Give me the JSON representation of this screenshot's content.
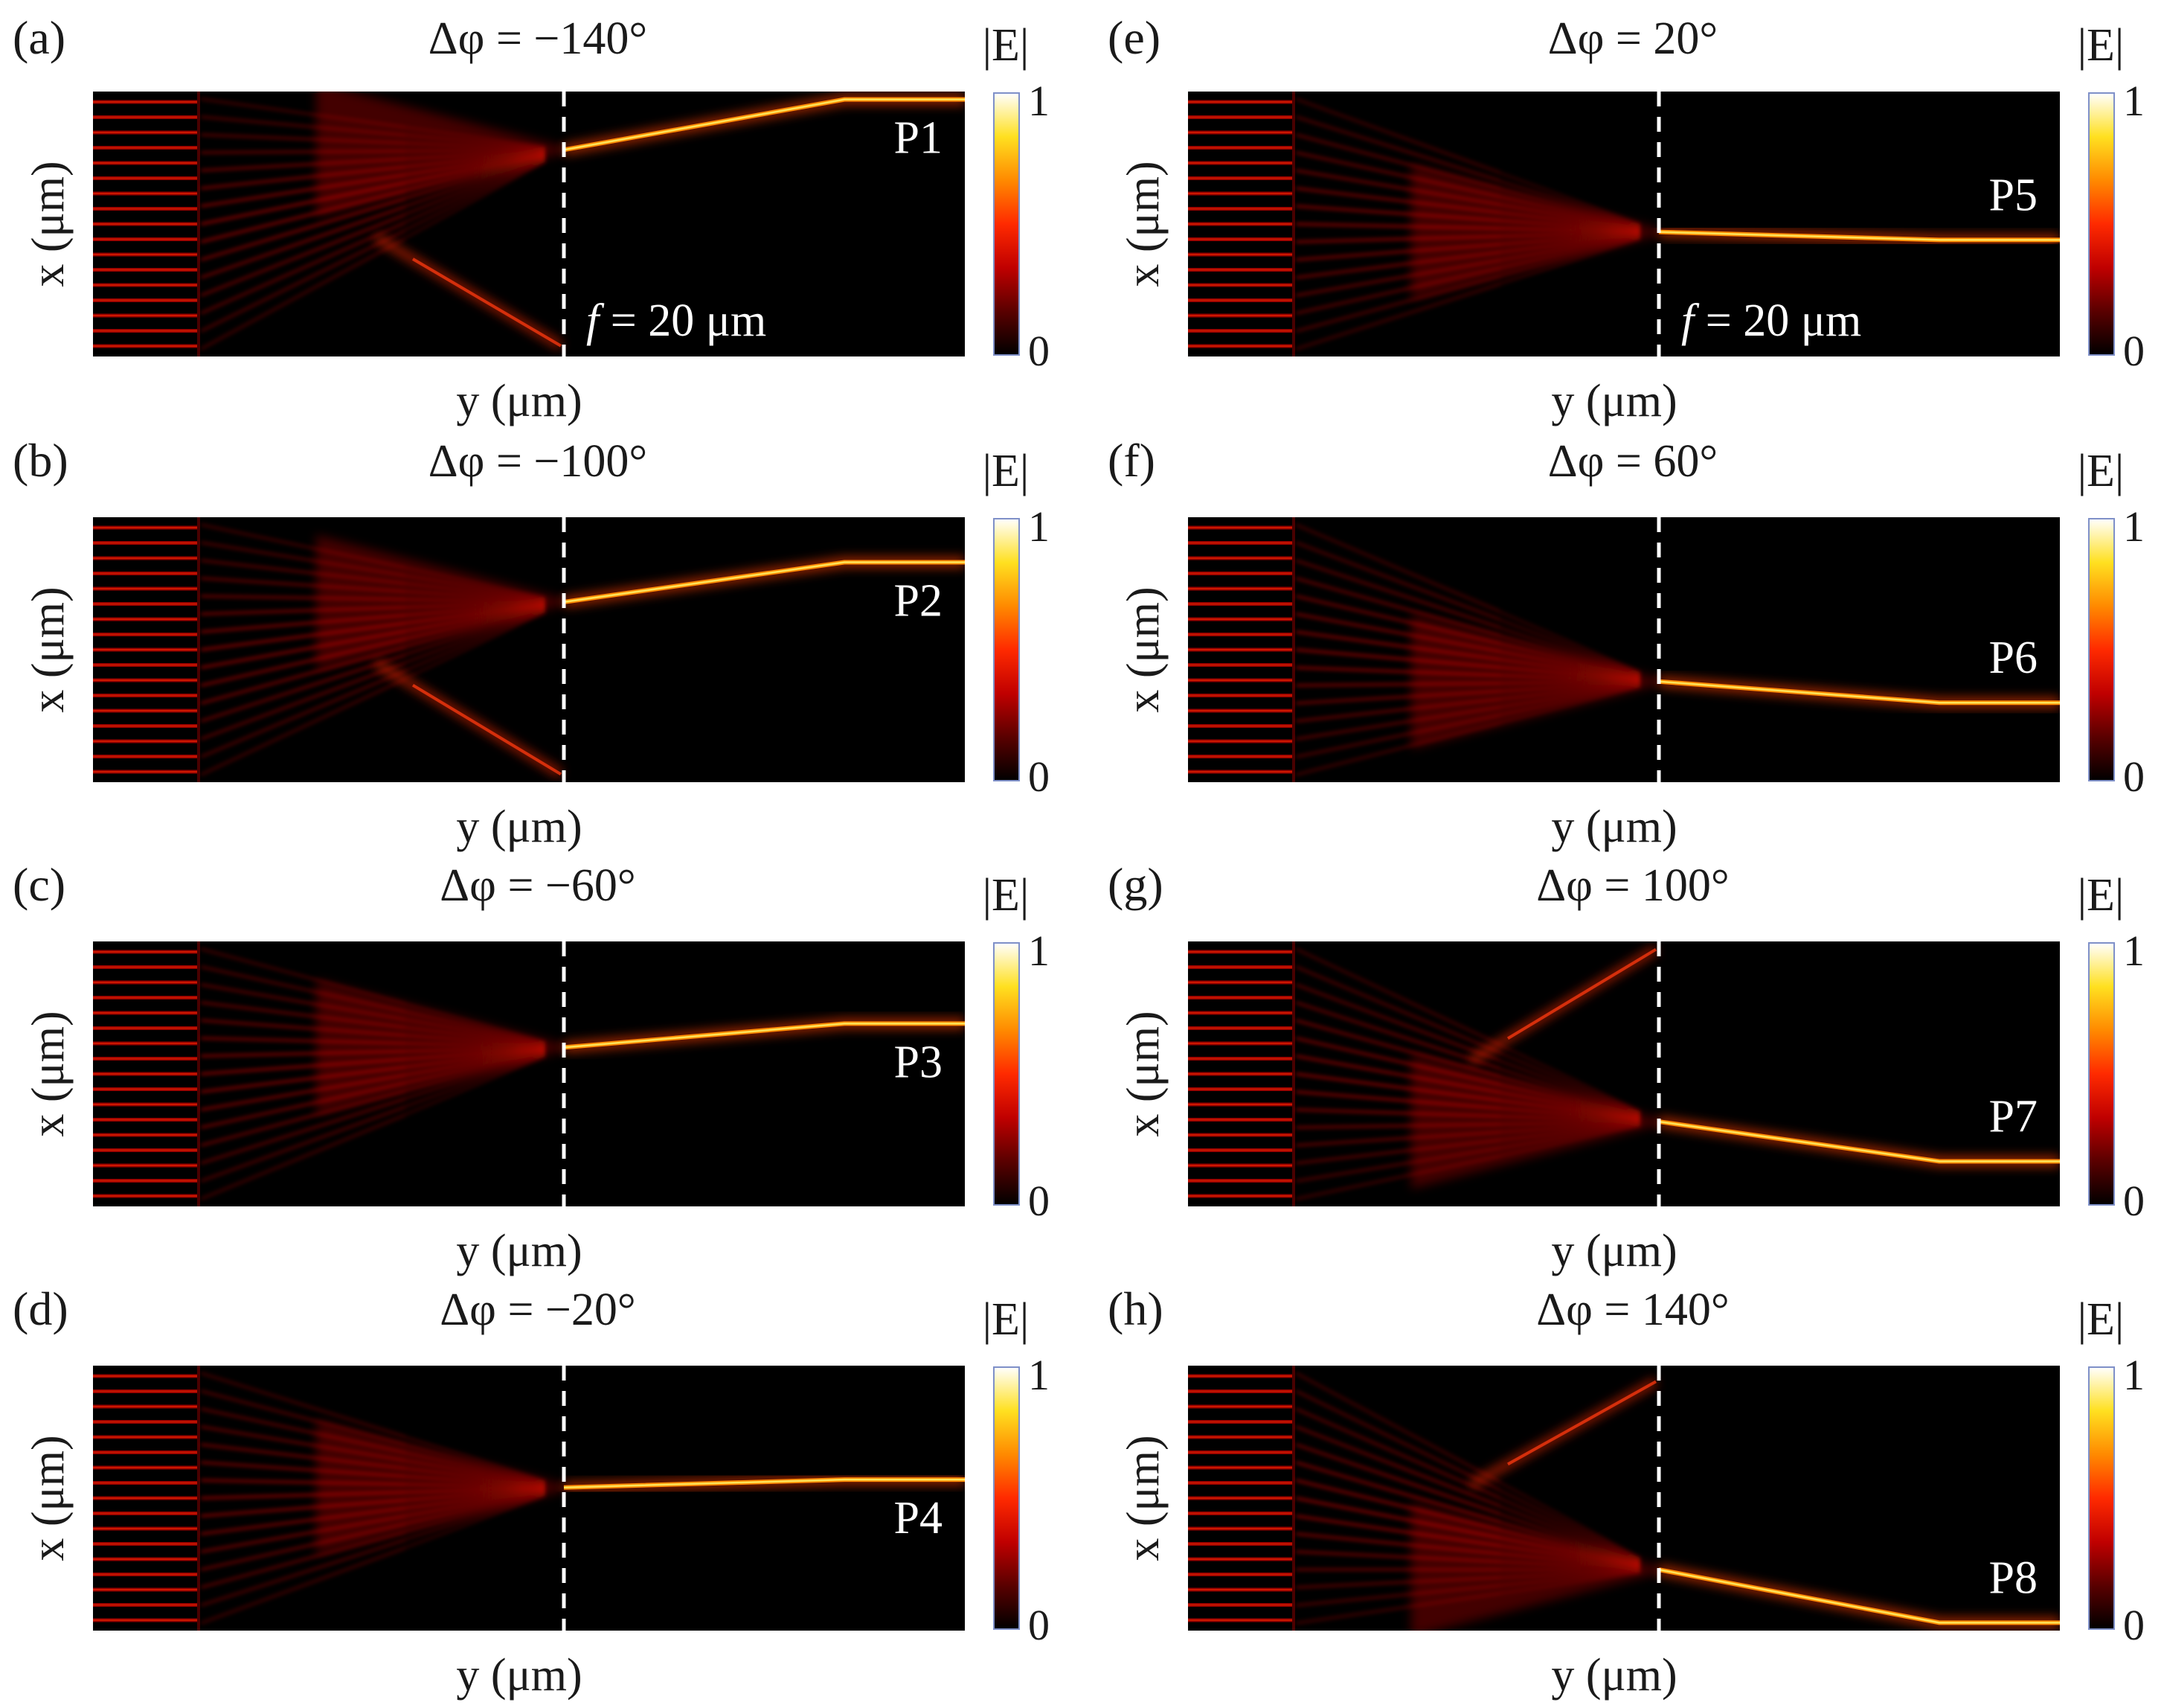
{
  "figure": {
    "x_axis_label": "y (μm)",
    "y_axis_label": "x (μm)",
    "colorbar_label": "|E|",
    "colorbar_max": "1",
    "colorbar_min": "0",
    "focal_label_f": "f",
    "focal_label_value": " = 20 μm",
    "colormap": [
      "#000000",
      "#5a0000",
      "#c00000",
      "#ff2a00",
      "#ff8a00",
      "#ffe020",
      "#ffffff"
    ]
  },
  "chart_data": [
    {
      "type": "heatmap",
      "panel": "(a)",
      "title": "Δφ = −140°",
      "port": "P1",
      "phase_deg": -140,
      "focus_x": 0.22,
      "port_x": 0.03,
      "xlabel": "y (μm)",
      "ylabel": "x (μm)",
      "clim": [
        0,
        1
      ],
      "focal_length_um": 20,
      "show_focal_label": true,
      "side_beam_x": 0.96
    },
    {
      "type": "heatmap",
      "panel": "(b)",
      "title": "Δφ = −100°",
      "port": "P2",
      "phase_deg": -100,
      "focus_x": 0.32,
      "port_x": 0.17,
      "xlabel": "y (μm)",
      "ylabel": "x (μm)",
      "clim": [
        0,
        1
      ],
      "focal_length_um": 20,
      "show_focal_label": false,
      "side_beam_x": 0.97
    },
    {
      "type": "heatmap",
      "panel": "(c)",
      "title": "Δφ = −60°",
      "port": "P3",
      "phase_deg": -60,
      "focus_x": 0.4,
      "port_x": 0.31,
      "xlabel": "y (μm)",
      "ylabel": "x (μm)",
      "clim": [
        0,
        1
      ],
      "focal_length_um": 20,
      "show_focal_label": false,
      "side_beam_x": null
    },
    {
      "type": "heatmap",
      "panel": "(d)",
      "title": "Δφ = −20°",
      "port": "P4",
      "phase_deg": -20,
      "focus_x": 0.46,
      "port_x": 0.43,
      "xlabel": "y (μm)",
      "ylabel": "x (μm)",
      "clim": [
        0,
        1
      ],
      "focal_length_um": 20,
      "show_focal_label": false,
      "side_beam_x": null
    },
    {
      "type": "heatmap",
      "panel": "(e)",
      "title": "Δφ = 20°",
      "port": "P5",
      "phase_deg": 20,
      "focus_x": 0.53,
      "port_x": 0.56,
      "xlabel": "y (μm)",
      "ylabel": "x (μm)",
      "clim": [
        0,
        1
      ],
      "focal_length_um": 20,
      "show_focal_label": true,
      "side_beam_x": null
    },
    {
      "type": "heatmap",
      "panel": "(f)",
      "title": "Δφ = 60°",
      "port": "P6",
      "phase_deg": 60,
      "focus_x": 0.62,
      "port_x": 0.7,
      "xlabel": "y (μm)",
      "ylabel": "x (μm)",
      "clim": [
        0,
        1
      ],
      "focal_length_um": 20,
      "show_focal_label": false,
      "side_beam_x": null
    },
    {
      "type": "heatmap",
      "panel": "(g)",
      "title": "Δφ = 100°",
      "port": "P7",
      "phase_deg": 100,
      "focus_x": 0.68,
      "port_x": 0.83,
      "xlabel": "y (μm)",
      "ylabel": "x (μm)",
      "clim": [
        0,
        1
      ],
      "focal_length_um": 20,
      "show_focal_label": false,
      "side_beam_x": 0.03
    },
    {
      "type": "heatmap",
      "panel": "(h)",
      "title": "Δφ = 140°",
      "port": "P8",
      "phase_deg": 140,
      "focus_x": 0.77,
      "port_x": 0.97,
      "xlabel": "y (μm)",
      "ylabel": "x (μm)",
      "clim": [
        0,
        1
      ],
      "focal_length_um": 20,
      "show_focal_label": false,
      "side_beam_x": 0.06
    }
  ]
}
